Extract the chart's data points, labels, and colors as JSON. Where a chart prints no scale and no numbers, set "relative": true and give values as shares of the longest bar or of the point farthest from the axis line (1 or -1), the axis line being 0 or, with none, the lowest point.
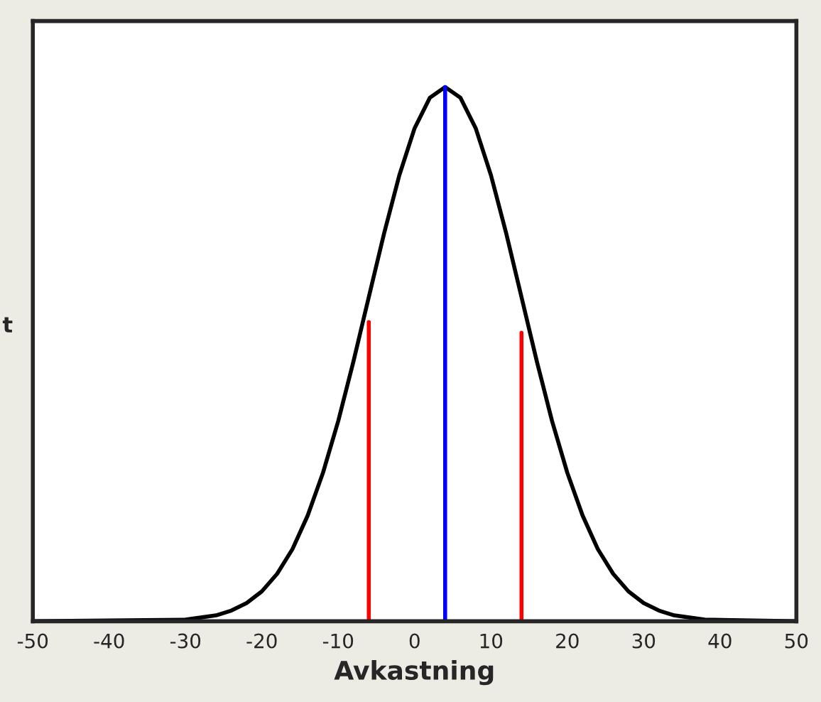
{
  "chart_data": {
    "type": "line",
    "relative": true,
    "xlabel": "Avkastning",
    "ylabel": "t",
    "xlim": [
      -50,
      50
    ],
    "xticks": [
      -50,
      -40,
      -30,
      -20,
      -10,
      0,
      10,
      20,
      30,
      40,
      50
    ],
    "grid": false,
    "legend": false,
    "marker": "none",
    "line_style": "solid",
    "series": [
      {
        "color": "#000000",
        "x": [
          -50,
          -30,
          -26,
          -24,
          -22,
          -20,
          -18,
          -16,
          -14,
          -12,
          -10,
          -8,
          -6,
          -4,
          -2,
          0,
          2,
          4,
          6,
          8,
          10,
          12,
          14,
          16,
          18,
          20,
          22,
          24,
          26,
          28,
          30,
          32,
          34,
          38,
          50
        ],
        "values": [
          0,
          0.003,
          0.011,
          0.02,
          0.034,
          0.056,
          0.089,
          0.135,
          0.198,
          0.278,
          0.375,
          0.487,
          0.607,
          0.726,
          0.835,
          0.923,
          0.98,
          1,
          0.98,
          0.923,
          0.835,
          0.726,
          0.607,
          0.487,
          0.375,
          0.278,
          0.198,
          0.135,
          0.089,
          0.056,
          0.034,
          0.02,
          0.011,
          0.003,
          0
        ]
      },
      {
        "color": "#ff0000",
        "x": [
          -6,
          -6
        ],
        "values": [
          0,
          0.56
        ]
      },
      {
        "color": "#0000ff",
        "x": [
          4,
          4
        ],
        "values": [
          0,
          1
        ]
      },
      {
        "color": "#ff0000",
        "x": [
          14,
          14
        ],
        "values": [
          0,
          0.54
        ]
      }
    ]
  }
}
